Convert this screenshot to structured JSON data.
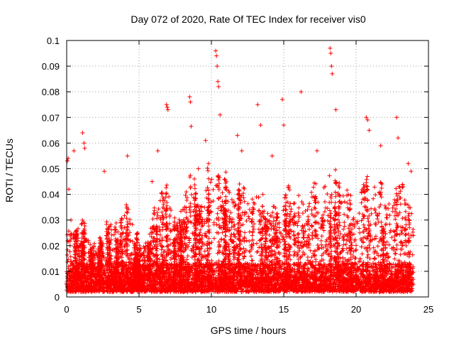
{
  "chart_data": {
    "type": "scatter",
    "title": "Day 072 of 2020, Rate Of TEC Index for receiver vis0",
    "xlabel": "GPS time / hours",
    "ylabel": "ROTI / TECUs",
    "xlim": [
      0,
      25
    ],
    "ylim": [
      0,
      0.1
    ],
    "xticks": [
      "0",
      "5",
      "10",
      "15",
      "20",
      "25"
    ],
    "yticks": [
      "0",
      "0.01",
      "0.02",
      "0.03",
      "0.04",
      "0.05",
      "0.06",
      "0.07",
      "0.08",
      "0.09",
      "0.1"
    ],
    "grid": true,
    "marker": "plus",
    "series": [
      {
        "name": "ROTI",
        "color": "#ff0000",
        "x": [
          0.05,
          0.1,
          0.15,
          0.3,
          0.5,
          1.1,
          1.2,
          1.25,
          2.6,
          4.2,
          5.9,
          6.3,
          6.9,
          6.95,
          7.0,
          8.5,
          8.55,
          8.6,
          9.1,
          9.6,
          9.8,
          10.3,
          10.35,
          10.4,
          10.45,
          10.5,
          10.6,
          11.8,
          12.1,
          13.2,
          13.4,
          14.2,
          14.9,
          15.0,
          16.2,
          17.3,
          18.2,
          18.25,
          18.3,
          18.35,
          18.6,
          20.7,
          20.8,
          20.9,
          21.7,
          22.8,
          22.9,
          23.6,
          23.8
        ],
        "y": [
          0.053,
          0.054,
          0.042,
          0.03,
          0.057,
          0.064,
          0.06,
          0.058,
          0.049,
          0.055,
          0.045,
          0.057,
          0.075,
          0.074,
          0.073,
          0.078,
          0.076,
          0.0665,
          0.05,
          0.061,
          0.052,
          0.096,
          0.094,
          0.09,
          0.084,
          0.082,
          0.071,
          0.063,
          0.057,
          0.075,
          0.067,
          0.055,
          0.077,
          0.067,
          0.08,
          0.057,
          0.097,
          0.095,
          0.09,
          0.087,
          0.073,
          0.07,
          0.069,
          0.065,
          0.059,
          0.07,
          0.062,
          0.052,
          0.049
        ],
        "density_envelope": {
          "x": [
            0,
            0.5,
            1,
            1.5,
            2,
            2.5,
            3,
            3.5,
            4,
            4.5,
            5,
            5.5,
            6,
            6.5,
            7,
            7.5,
            8,
            8.5,
            9,
            9.5,
            10,
            10.5,
            11,
            11.5,
            12,
            12.5,
            13,
            13.5,
            14,
            14.5,
            15,
            15.5,
            16,
            16.5,
            17,
            17.5,
            18,
            18.5,
            19,
            19.5,
            20,
            20.5,
            21,
            21.5,
            22,
            22.5,
            23,
            23.5,
            24
          ],
          "y": [
            0.031,
            0.024,
            0.03,
            0.022,
            0.018,
            0.025,
            0.03,
            0.026,
            0.035,
            0.03,
            0.02,
            0.022,
            0.032,
            0.038,
            0.042,
            0.028,
            0.034,
            0.045,
            0.04,
            0.044,
            0.046,
            0.05,
            0.047,
            0.043,
            0.04,
            0.045,
            0.041,
            0.038,
            0.036,
            0.035,
            0.04,
            0.037,
            0.042,
            0.039,
            0.044,
            0.036,
            0.048,
            0.05,
            0.042,
            0.04,
            0.033,
            0.045,
            0.038,
            0.043,
            0.04,
            0.036,
            0.044,
            0.038,
            0.034
          ]
        }
      }
    ]
  }
}
